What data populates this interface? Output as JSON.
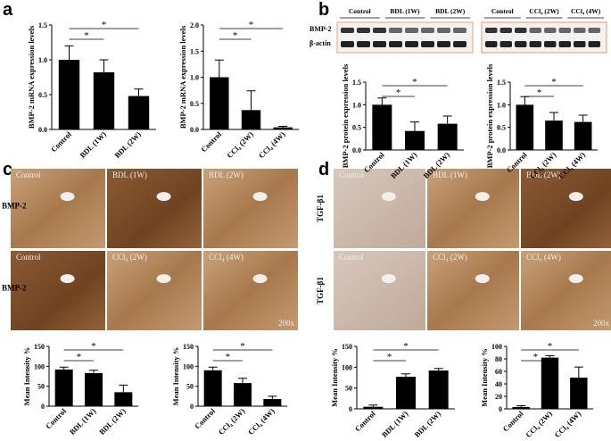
{
  "panel_labels": [
    "a",
    "b",
    "c",
    "d"
  ],
  "blot": {
    "groups": [
      [
        "Control",
        "BDL (1W)",
        "BDL (2W)"
      ],
      [
        "Control",
        "CCl₄ (2W)",
        "CCl₄ (4W)"
      ]
    ],
    "rows": [
      "BMP-2",
      "β-actin"
    ]
  },
  "micrographs": [
    {
      "row_labels": [
        "BMP-2",
        "BMP-2"
      ],
      "images": [
        [
          "Control",
          "BDL (1W)",
          "BDL (2W)"
        ],
        [
          "Control",
          "CCl₄ (2W)",
          "CCl₄ (4W)"
        ]
      ],
      "magnification": "200x"
    },
    {
      "row_labels": [
        "TGF-β1",
        "TGF-β1"
      ],
      "images": [
        [
          "Control",
          "BDL (1W)",
          "BDL (2W)"
        ],
        [
          "Control",
          "CCl₄ (2W)",
          "CCl₄ (4W)"
        ]
      ],
      "magnification": "200x"
    }
  ],
  "chart_data": [
    {
      "type": "bar",
      "ylabel": "BMP-2 mRNA expression levels",
      "categories": [
        "Control",
        "BDL (1W)",
        "BDL (2W)"
      ],
      "values": [
        1.0,
        0.82,
        0.48
      ],
      "errors": [
        0.2,
        0.18,
        0.1
      ],
      "color": "#000000",
      "ylim": [
        0,
        1.5
      ],
      "yticks": [
        {
          "value": 0,
          "label": "0.0"
        },
        {
          "value": 0.5,
          "label": "0.5"
        },
        {
          "value": 1,
          "label": "1.0"
        },
        {
          "value": 1.5,
          "label": "1.5"
        }
      ],
      "annotations": [
        "*",
        "*"
      ]
    },
    {
      "type": "bar",
      "ylabel": "BMP-2 mRNA expression levels",
      "categories": [
        "Control",
        "CCl₄ (2W)",
        "CCl₄ (4W)"
      ],
      "values": [
        1.0,
        0.37,
        0.04
      ],
      "errors": [
        0.33,
        0.37,
        0.02
      ],
      "color": "#000000",
      "ylim": [
        0,
        2
      ],
      "yticks": [
        {
          "value": 0,
          "label": "0.0"
        },
        {
          "value": 0.5,
          "label": "0.5"
        },
        {
          "value": 1,
          "label": "1.0"
        },
        {
          "value": 1.5,
          "label": "1.5"
        },
        {
          "value": 2,
          "label": "2.0"
        }
      ],
      "annotations": [
        "*",
        "*"
      ]
    },
    {
      "type": "bar",
      "ylabel": "BMP-2 protein expression levels",
      "categories": [
        "Control",
        "BDL (1W)",
        "BDL (2W)"
      ],
      "values": [
        1.0,
        0.42,
        0.58
      ],
      "errors": [
        0.15,
        0.2,
        0.17
      ],
      "color": "#000000",
      "ylim": [
        0,
        1.5
      ],
      "yticks": [
        {
          "value": 0,
          "label": "0.0"
        },
        {
          "value": 0.5,
          "label": "0.5"
        },
        {
          "value": 1,
          "label": "1.0"
        },
        {
          "value": 1.5,
          "label": "1.5"
        }
      ],
      "annotations": [
        "*",
        "*"
      ]
    },
    {
      "type": "bar",
      "ylabel": "BMP-2 protein expression levels",
      "categories": [
        "Control",
        "CCl₄ (2W)",
        "CCl₄ (4W)"
      ],
      "values": [
        1.0,
        0.65,
        0.62
      ],
      "errors": [
        0.18,
        0.18,
        0.15
      ],
      "color": "#000000",
      "ylim": [
        0,
        1.5
      ],
      "yticks": [
        {
          "value": 0,
          "label": "0.0"
        },
        {
          "value": 0.5,
          "label": "0.5"
        },
        {
          "value": 1,
          "label": "1.0"
        },
        {
          "value": 1.5,
          "label": "1.5"
        }
      ],
      "annotations": [
        "*",
        "*"
      ]
    },
    {
      "type": "bar",
      "ylabel": "Mean Intensity %",
      "categories": [
        "Control",
        "BDL (1W)",
        "BDL (2W)"
      ],
      "values": [
        92,
        83,
        35
      ],
      "errors": [
        6,
        7,
        18
      ],
      "color": "#000000",
      "ylim": [
        0,
        150
      ],
      "yticks": [
        0,
        50,
        100,
        150
      ],
      "annotations": [
        "*",
        "*"
      ]
    },
    {
      "type": "bar",
      "ylabel": "Mean Intensity %",
      "categories": [
        "Control",
        "CCl₄ (2W)",
        "CCl₄ (4W)"
      ],
      "values": [
        90,
        58,
        18
      ],
      "errors": [
        8,
        12,
        7
      ],
      "color": "#000000",
      "ylim": [
        0,
        150
      ],
      "yticks": [
        0,
        50,
        100,
        150
      ],
      "annotations": [
        "*",
        "*"
      ]
    },
    {
      "type": "bar",
      "ylabel": "Mean Intensity %",
      "categories": [
        "Control",
        "BDL (1W)",
        "BDL (2W)"
      ],
      "values": [
        5,
        77,
        92
      ],
      "errors": [
        4,
        7,
        5
      ],
      "color": "#000000",
      "ylim": [
        0,
        150
      ],
      "yticks": [
        0,
        50,
        100,
        150
      ],
      "annotations": [
        "*",
        "*"
      ]
    },
    {
      "type": "bar",
      "ylabel": "Mean Intensity %",
      "categories": [
        "Control",
        "CCl₄ (2W)",
        "CCl₄ (4W)"
      ],
      "values": [
        3,
        82,
        50
      ],
      "errors": [
        2,
        3,
        17
      ],
      "color": "#000000",
      "ylim": [
        0,
        100
      ],
      "yticks": [
        0,
        20,
        40,
        60,
        80,
        100
      ],
      "annotations": [
        "*",
        "*"
      ]
    }
  ]
}
